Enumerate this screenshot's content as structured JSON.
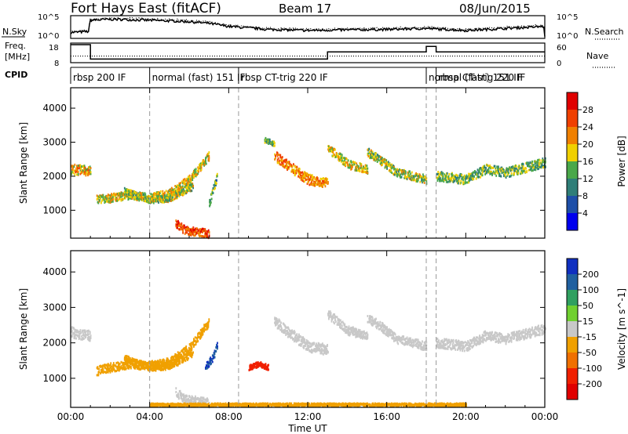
{
  "header": {
    "station": "Fort Hays East (fitACF)",
    "beam": "Beam 17",
    "date": "08/Jun/2015"
  },
  "noise_panel": {
    "left_label": "N.Sky",
    "right_label": "N.Search",
    "left_ticks": [
      "10^5",
      "10^0"
    ],
    "right_ticks": [
      "10^5",
      "10^0"
    ]
  },
  "freq_panel": {
    "left_label": "Freq.",
    "left_units": "[MHz]",
    "right_label": "Nave",
    "left_ticks": [
      "18",
      "8"
    ],
    "right_ticks": [
      "60",
      "0"
    ]
  },
  "cpid": {
    "label": "CPID",
    "segments": [
      {
        "label": "rbsp 200 IF",
        "start": 0.0
      },
      {
        "label": "normal (fast) 151 IF",
        "start": 4.0
      },
      {
        "label": "rbsp CT-trig 220 IF",
        "start": 8.5
      },
      {
        "label": "normal (fast) 151 IF",
        "start": 18.0
      },
      {
        "label": "rbsp CT-trig 220 IF",
        "start": 18.5
      }
    ]
  },
  "time_axis": {
    "label": "Time UT",
    "ticks": [
      "00:00",
      "04:00",
      "08:00",
      "12:00",
      "16:00",
      "20:00",
      "00:00"
    ]
  },
  "range_axis": {
    "label": "Slant Range [km]",
    "ticks": [
      "1000",
      "2000",
      "3000",
      "4000"
    ]
  },
  "power_colorbar": {
    "label": "Power [dB]",
    "ticks": [
      "4",
      "8",
      "12",
      "16",
      "20",
      "24",
      "28"
    ],
    "colors": [
      "#0000ee",
      "#1e4fa8",
      "#2f7e78",
      "#4aa84a",
      "#f0d000",
      "#f08000",
      "#f04000",
      "#e00000"
    ]
  },
  "velocity_colorbar": {
    "label": "Velocity [m s^-1]",
    "ticks": [
      "200",
      "100",
      "50",
      "15",
      "-15",
      "-50",
      "-100",
      "-200"
    ],
    "colors": [
      "#1030c0",
      "#2060a0",
      "#30a060",
      "#70d030",
      "#c8c8c8",
      "#f0a000",
      "#f07000",
      "#f02000",
      "#e00000"
    ]
  },
  "chart_data": [
    {
      "type": "line",
      "title": "N.Sky / N.Search",
      "x_range_hours": [
        0,
        24
      ],
      "series": [
        {
          "name": "N.Sky",
          "x": [
            0.0,
            0.9,
            1.0,
            2.0,
            3.0,
            4.0,
            5.0,
            6.0,
            7.0,
            8.0,
            10.0,
            12.0,
            14.0,
            16.0,
            18.0,
            20.0,
            22.0,
            24.0
          ],
          "y": [
            0.25,
            0.3,
            0.85,
            0.9,
            0.88,
            0.85,
            0.82,
            0.78,
            0.7,
            0.55,
            0.4,
            0.35,
            0.38,
            0.4,
            0.45,
            0.35,
            0.45,
            0.55
          ]
        }
      ]
    },
    {
      "type": "line",
      "title": "Freq. / Nave",
      "x_range_hours": [
        0,
        24
      ],
      "series": [
        {
          "name": "Freq.",
          "x": [
            0.0,
            1.0,
            1.0,
            13.0,
            13.0,
            18.0,
            18.0,
            18.5,
            18.5,
            24.0
          ],
          "y": [
            18,
            18,
            10,
            10,
            14,
            14,
            17,
            17,
            14,
            14
          ]
        },
        {
          "name": "Nave",
          "x": [
            0,
            24
          ],
          "y": [
            22,
            22
          ]
        }
      ]
    },
    {
      "type": "heatmap",
      "title": "Power [dB]",
      "xlabel": "Time UT",
      "ylabel": "Slant Range [km]",
      "x_range_hours": [
        0,
        24
      ],
      "ylim": [
        180,
        4600
      ],
      "bands": [
        {
          "t": [
            0.0,
            0.8,
            1.0
          ],
          "r": [
            2200,
            2150,
            2150
          ],
          "width": 300,
          "value": 20
        },
        {
          "t": [
            1.3,
            2.0,
            3.0,
            4.0,
            5.0,
            6.0,
            7.0
          ],
          "r": [
            1300,
            1350,
            1450,
            1350,
            1500,
            1900,
            2600
          ],
          "width": 250,
          "value": 18
        },
        {
          "t": [
            2.7,
            4.0,
            5.0,
            6.2
          ],
          "r": [
            1550,
            1300,
            1350,
            1700
          ],
          "width": 200,
          "value": 16
        },
        {
          "t": [
            5.3,
            5.8,
            6.4,
            7.0
          ],
          "r": [
            600,
            400,
            350,
            300
          ],
          "width": 250,
          "value": 26
        },
        {
          "t": [
            7.0,
            7.4
          ],
          "r": [
            1200,
            2000
          ],
          "width": 250,
          "value": 12
        },
        {
          "t": [
            9.8,
            10.3
          ],
          "r": [
            3050,
            2950
          ],
          "width": 150,
          "value": 14
        },
        {
          "t": [
            10.3,
            11.0,
            12.0,
            13.0
          ],
          "r": [
            2600,
            2300,
            1900,
            1800
          ],
          "width": 300,
          "value": 22
        },
        {
          "t": [
            13.0,
            13.5,
            14.0,
            15.0
          ],
          "r": [
            2800,
            2600,
            2350,
            2200
          ],
          "width": 250,
          "value": 18
        },
        {
          "t": [
            15.0,
            15.7,
            16.5,
            18.0
          ],
          "r": [
            2700,
            2450,
            2100,
            1900
          ],
          "width": 250,
          "value": 16
        },
        {
          "t": [
            18.5,
            20.0,
            21.0,
            22.0,
            24.0
          ],
          "r": [
            2000,
            1900,
            2200,
            2100,
            2400
          ],
          "width": 280,
          "value": 14
        }
      ]
    },
    {
      "type": "heatmap",
      "title": "Velocity [m s^-1]",
      "xlabel": "Time UT",
      "ylabel": "Slant Range [km]",
      "x_range_hours": [
        0,
        24
      ],
      "ylim": [
        180,
        4600
      ],
      "bands": [
        {
          "t": [
            0.0,
            0.8,
            1.0
          ],
          "r": [
            2300,
            2200,
            2200
          ],
          "width": 300,
          "value": 0
        },
        {
          "t": [
            1.3,
            2.0,
            3.0,
            4.0,
            5.0,
            6.0,
            7.0
          ],
          "r": [
            1200,
            1300,
            1400,
            1350,
            1450,
            1850,
            2600
          ],
          "width": 250,
          "value": -40
        },
        {
          "t": [
            2.7,
            4.0,
            5.0,
            6.2
          ],
          "r": [
            1550,
            1300,
            1350,
            1700
          ],
          "width": 200,
          "value": -40
        },
        {
          "t": [
            5.3,
            5.8,
            6.4,
            7.0
          ],
          "r": [
            600,
            400,
            350,
            300
          ],
          "width": 250,
          "value": 0
        },
        {
          "t": [
            6.8,
            7.2,
            7.4
          ],
          "r": [
            1300,
            1600,
            1900
          ],
          "width": 200,
          "value": 150
        },
        {
          "t": [
            9.0,
            9.5,
            10.0
          ],
          "r": [
            1300,
            1400,
            1300
          ],
          "width": 150,
          "value": -150
        },
        {
          "t": [
            10.3,
            11.0,
            12.0,
            13.0
          ],
          "r": [
            2600,
            2300,
            1900,
            1800
          ],
          "width": 300,
          "value": 0
        },
        {
          "t": [
            13.0,
            13.5,
            14.0,
            15.0
          ],
          "r": [
            2800,
            2600,
            2350,
            2200
          ],
          "width": 250,
          "value": 0
        },
        {
          "t": [
            15.0,
            15.7,
            16.5,
            18.0
          ],
          "r": [
            2700,
            2450,
            2100,
            1900
          ],
          "width": 250,
          "value": 0
        },
        {
          "t": [
            18.5,
            20.0,
            21.0,
            22.0,
            24.0
          ],
          "r": [
            2000,
            1900,
            2200,
            2100,
            2400
          ],
          "width": 280,
          "value": 0
        },
        {
          "t": [
            4.0,
            10.0,
            16.0,
            20.0
          ],
          "r": [
            250,
            250,
            250,
            250
          ],
          "width": 80,
          "value": -30
        }
      ]
    }
  ]
}
